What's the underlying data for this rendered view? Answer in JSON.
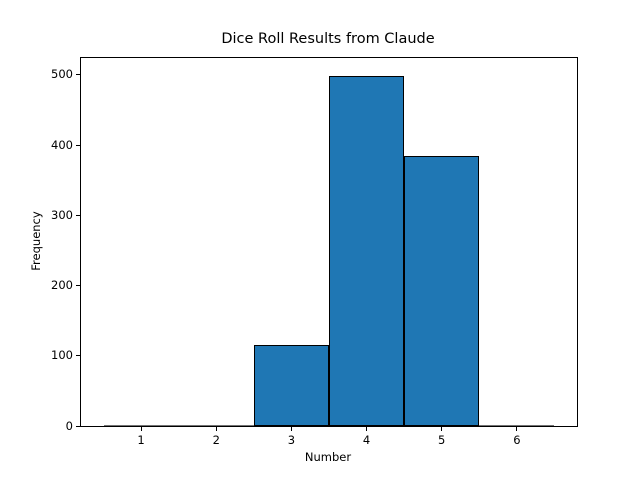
{
  "chart_data": {
    "type": "bar",
    "subtype": "histogram",
    "title": "Dice Roll Results from Claude",
    "xlabel": "Number",
    "ylabel": "Frequency",
    "categories": [
      1,
      2,
      3,
      4,
      5,
      6
    ],
    "values": [
      0,
      0,
      116,
      499,
      385,
      0
    ],
    "bin_width": 1,
    "xticks": [
      1,
      2,
      3,
      4,
      5,
      6
    ],
    "yticks": [
      0,
      100,
      200,
      300,
      400,
      500
    ],
    "xlim": [
      0.2,
      6.8
    ],
    "ylim": [
      0,
      524
    ],
    "grid": false,
    "legend_position": "none",
    "bar_color": "#1f77b4",
    "bar_edge_color": "#000000",
    "background_color": "#ffffff",
    "text_color": "#000000"
  }
}
